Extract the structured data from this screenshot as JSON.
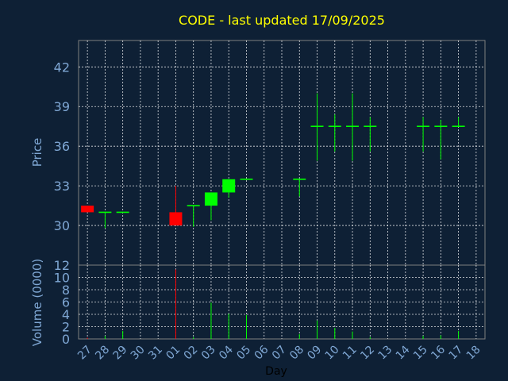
{
  "chart_data": {
    "type": "candlestick",
    "title": "CODE - last updated 17/09/2025",
    "xlabel": "Day",
    "price_panel": {
      "ylabel": "Price",
      "ylim": [
        27,
        44
      ],
      "yticks": [
        "30",
        "33",
        "36",
        "39",
        "42"
      ],
      "grid": true
    },
    "volume_panel": {
      "ylabel": "Volume (0000)",
      "ylim": [
        0,
        12
      ],
      "yticks": [
        "0",
        "2",
        "4",
        "6",
        "8",
        "10",
        "12"
      ],
      "grid": true
    },
    "categories": [
      "27",
      "28",
      "29",
      "30",
      "31",
      "01",
      "02",
      "03",
      "04",
      "05",
      "06",
      "07",
      "08",
      "09",
      "10",
      "11",
      "12",
      "13",
      "14",
      "15",
      "16",
      "17",
      "18"
    ],
    "candles": [
      {
        "day": "27",
        "open": 31.5,
        "high": 31.5,
        "low": 31.0,
        "close": 31.0,
        "volume": 0.2
      },
      {
        "day": "28",
        "open": 31.0,
        "high": 31.0,
        "low": 29.8,
        "close": 31.0,
        "volume": 0.5
      },
      {
        "day": "29",
        "open": 31.0,
        "high": 31.0,
        "low": 31.0,
        "close": 31.0,
        "volume": 1.3
      },
      {
        "day": "01",
        "open": 31.0,
        "high": 33.0,
        "low": 30.0,
        "close": 30.0,
        "volume": 11.3
      },
      {
        "day": "02",
        "open": 31.5,
        "high": 31.5,
        "low": 29.9,
        "close": 31.5,
        "volume": 0.3
      },
      {
        "day": "03",
        "open": 31.5,
        "high": 32.5,
        "low": 30.4,
        "close": 32.5,
        "volume": 5.9
      },
      {
        "day": "04",
        "open": 32.5,
        "high": 33.5,
        "low": 32.1,
        "close": 33.5,
        "volume": 4.1
      },
      {
        "day": "05",
        "open": 33.5,
        "high": 33.5,
        "low": 33.5,
        "close": 33.5,
        "volume": 3.9
      },
      {
        "day": "08",
        "open": 33.5,
        "high": 33.5,
        "low": 32.2,
        "close": 33.5,
        "volume": 0.8
      },
      {
        "day": "09",
        "open": 37.5,
        "high": 40.0,
        "low": 34.9,
        "close": 37.5,
        "volume": 3.0
      },
      {
        "day": "10",
        "open": 37.5,
        "high": 38.4,
        "low": 35.6,
        "close": 37.5,
        "volume": 1.8
      },
      {
        "day": "11",
        "open": 37.5,
        "high": 40.0,
        "low": 34.9,
        "close": 37.5,
        "volume": 1.2
      },
      {
        "day": "12",
        "open": 37.5,
        "high": 38.2,
        "low": 35.6,
        "close": 37.5,
        "volume": 0.3
      },
      {
        "day": "15",
        "open": 37.5,
        "high": 38.2,
        "low": 35.6,
        "close": 37.5,
        "volume": 0.5
      },
      {
        "day": "16",
        "open": 37.5,
        "high": 38.0,
        "low": 35.0,
        "close": 37.5,
        "volume": 0.6
      },
      {
        "day": "17",
        "open": 37.5,
        "high": 38.2,
        "low": 37.5,
        "close": 37.5,
        "volume": 1.3
      }
    ],
    "colors": {
      "background": "#0e2035",
      "plot_background": "#0e2035",
      "up": "#00ff00",
      "down": "#ff0000",
      "title": "#ffff00",
      "axis_text": "#7fa7d4",
      "grid": "#ffffff",
      "frame": "#7f7f7f",
      "xlabel": "#000000"
    }
  }
}
